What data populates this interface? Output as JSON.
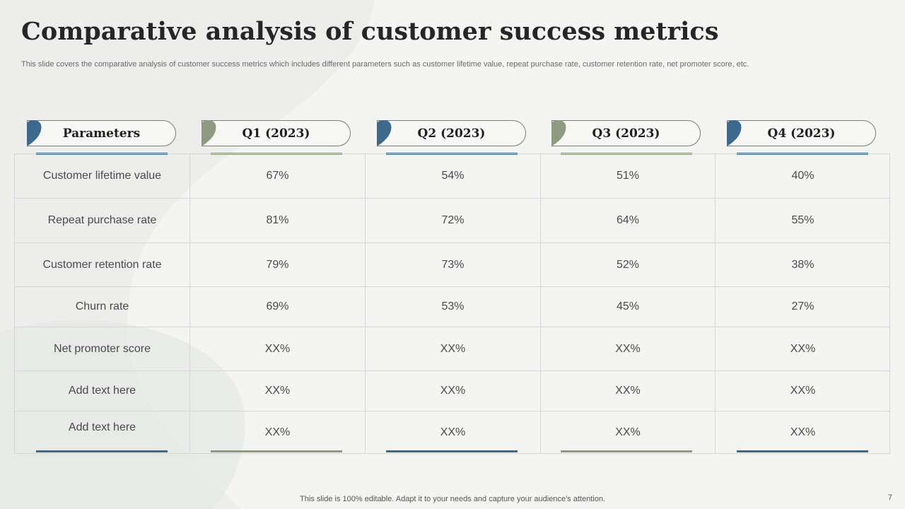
{
  "title": "Comparative analysis of customer success metrics",
  "subtitle": "This slide covers the comparative analysis of customer success metrics which includes different parameters such as customer lifetime value, repeat purchase rate, customer retention rate, net promoter score, etc.",
  "colors": {
    "blue": "#3d6a8c",
    "sage": "#8f9b80"
  },
  "columns": [
    {
      "label": "Parameters",
      "accent": "blue"
    },
    {
      "label": "Q1 (2023)",
      "accent": "sage"
    },
    {
      "label": "Q2 (2023)",
      "accent": "blue"
    },
    {
      "label": "Q3 (2023)",
      "accent": "sage"
    },
    {
      "label": "Q4 (2023)",
      "accent": "blue"
    }
  ],
  "rows": [
    [
      "Customer lifetime value",
      "67%",
      "54%",
      "51%",
      "40%"
    ],
    [
      "Repeat purchase rate",
      "81%",
      "72%",
      "64%",
      "55%"
    ],
    [
      "Customer retention rate",
      "79%",
      "73%",
      "52%",
      "38%"
    ],
    [
      "Churn rate",
      "69%",
      "53%",
      "45%",
      "27%"
    ],
    [
      "Net promoter score",
      "XX%",
      "XX%",
      "XX%",
      "XX%"
    ],
    [
      "Add text here",
      "XX%",
      "XX%",
      "XX%",
      "XX%"
    ],
    [
      "Add text here",
      "XX%",
      "XX%",
      "XX%",
      "XX%"
    ]
  ],
  "footer": "This slide is 100% editable. Adapt it to your needs and capture your audience's attention.",
  "page_number": "7"
}
